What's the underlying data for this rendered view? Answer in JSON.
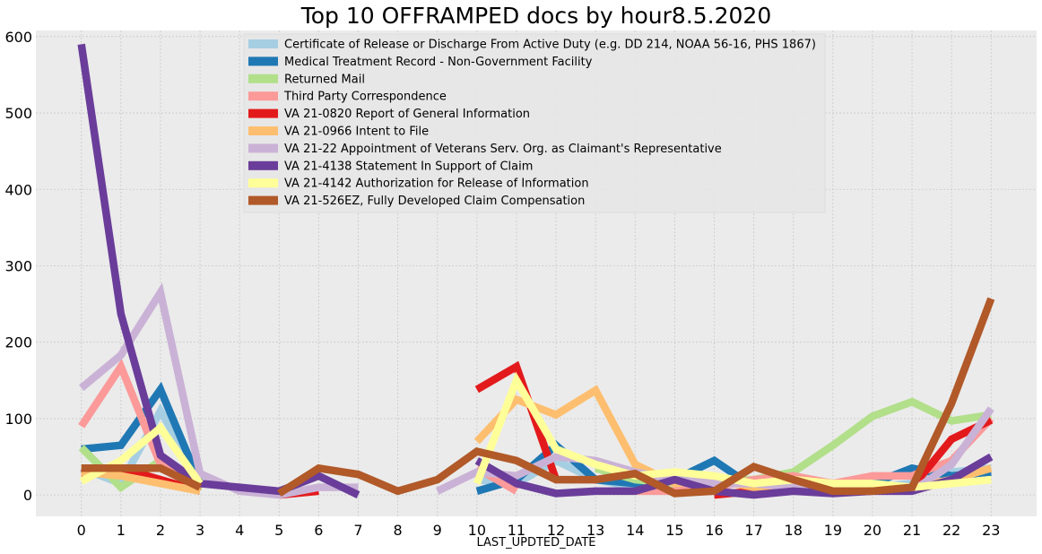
{
  "chart_data": {
    "type": "line",
    "title": "Top 10 OFFRAMPED docs by hour8.5.2020",
    "xlabel": "LAST_UPDTED_DATE",
    "ylabel": "",
    "xlim": [
      -1.15,
      24.15
    ],
    "ylim": [
      -28,
      608
    ],
    "x_ticks": [
      0,
      1,
      2,
      3,
      4,
      5,
      6,
      7,
      8,
      9,
      10,
      11,
      12,
      13,
      14,
      15,
      16,
      17,
      18,
      19,
      20,
      21,
      22,
      23
    ],
    "y_ticks": [
      0,
      100,
      200,
      300,
      400,
      500,
      600
    ],
    "grid": true,
    "legend_position": "top-center",
    "series": [
      {
        "name": "Certificate of Release or Discharge From Active Duty (e.g. DD 214, NOAA 56-16, PHS 1867)",
        "color": "#a6cee3",
        "points": [
          [
            0,
            35
          ],
          [
            1,
            15
          ],
          [
            2,
            110
          ],
          [
            3,
            20
          ],
          [
            null,
            null
          ],
          [
            10,
            20
          ],
          [
            11,
            15
          ],
          [
            12,
            45
          ],
          [
            13,
            20
          ],
          [
            14,
            10
          ],
          [
            15,
            10
          ],
          [
            16,
            10
          ],
          [
            17,
            20
          ],
          [
            18,
            15
          ],
          [
            19,
            10
          ],
          [
            20,
            10
          ],
          [
            21,
            15
          ],
          [
            22,
            30
          ],
          [
            23,
            35
          ]
        ]
      },
      {
        "name": "Medical Treatment Record - Non-Government Facility",
        "color": "#1f78b4",
        "points": [
          [
            0,
            60
          ],
          [
            1,
            65
          ],
          [
            2,
            138
          ],
          [
            3,
            15
          ],
          [
            null,
            null
          ],
          [
            10,
            5
          ],
          [
            11,
            20
          ],
          [
            12,
            65
          ],
          [
            13,
            20
          ],
          [
            14,
            15
          ],
          [
            15,
            20
          ],
          [
            16,
            45
          ],
          [
            17,
            10
          ],
          [
            18,
            10
          ],
          [
            19,
            5
          ],
          [
            20,
            15
          ],
          [
            21,
            35
          ],
          [
            22,
            25
          ],
          [
            23,
            30
          ]
        ]
      },
      {
        "name": "Returned Mail",
        "color": "#b2df8a",
        "points": [
          [
            0,
            62
          ],
          [
            1,
            10
          ],
          [
            2,
            45
          ],
          [
            3,
            5
          ],
          [
            null,
            null
          ],
          [
            13,
            35
          ],
          [
            14,
            20
          ],
          [
            15,
            15
          ],
          [
            16,
            20
          ],
          [
            17,
            20
          ],
          [
            18,
            30
          ],
          [
            19,
            65
          ],
          [
            20,
            103
          ],
          [
            21,
            122
          ],
          [
            22,
            97
          ],
          [
            23,
            105
          ]
        ]
      },
      {
        "name": "Third Party Correspondence",
        "color": "#fb9a99",
        "points": [
          [
            0,
            90
          ],
          [
            1,
            168
          ],
          [
            2,
            40
          ],
          [
            3,
            10
          ],
          [
            null,
            null
          ],
          [
            10,
            35
          ],
          [
            11,
            5
          ],
          [
            null,
            null
          ],
          [
            14,
            5
          ],
          [
            15,
            5
          ],
          [
            16,
            10
          ],
          [
            17,
            20
          ],
          [
            18,
            25
          ],
          [
            19,
            15
          ],
          [
            20,
            25
          ],
          [
            21,
            25
          ],
          [
            22,
            45
          ],
          [
            23,
            100
          ]
        ]
      },
      {
        "name": "VA 21-0820 Report of General Information",
        "color": "#e31a1c",
        "points": [
          [
            0,
            28
          ],
          [
            1,
            35
          ],
          [
            2,
            20
          ],
          [
            3,
            5
          ],
          [
            null,
            null
          ],
          [
            5,
            0
          ],
          [
            6,
            5
          ],
          [
            null,
            null
          ],
          [
            10,
            138
          ],
          [
            11,
            168
          ],
          [
            12,
            20
          ],
          [
            null,
            null
          ],
          [
            16,
            0
          ],
          [
            17,
            5
          ],
          [
            18,
            10
          ],
          [
            19,
            5
          ],
          [
            20,
            5
          ],
          [
            21,
            10
          ],
          [
            22,
            73
          ],
          [
            23,
            98
          ]
        ]
      },
      {
        "name": "VA 21-0966 Intent to File",
        "color": "#fdbf6f",
        "points": [
          [
            0,
            30
          ],
          [
            1,
            25
          ],
          [
            2,
            15
          ],
          [
            3,
            5
          ],
          [
            null,
            null
          ],
          [
            10,
            70
          ],
          [
            11,
            125
          ],
          [
            12,
            105
          ],
          [
            13,
            137
          ],
          [
            14,
            40
          ],
          [
            15,
            15
          ],
          [
            16,
            20
          ],
          [
            17,
            10
          ],
          [
            18,
            15
          ],
          [
            19,
            10
          ],
          [
            20,
            10
          ],
          [
            21,
            10
          ],
          [
            22,
            20
          ],
          [
            23,
            35
          ]
        ]
      },
      {
        "name": "VA 21-22 Appointment of Veterans Serv. Org. as Claimant's Representative",
        "color": "#cab2d6",
        "points": [
          [
            0,
            140
          ],
          [
            1,
            183
          ],
          [
            2,
            265
          ],
          [
            3,
            28
          ],
          [
            4,
            5
          ],
          [
            5,
            0
          ],
          [
            6,
            10
          ],
          [
            7,
            10
          ],
          [
            null,
            null
          ],
          [
            9,
            5
          ],
          [
            10,
            30
          ],
          [
            11,
            25
          ],
          [
            12,
            50
          ],
          [
            13,
            45
          ],
          [
            14,
            30
          ],
          [
            15,
            20
          ],
          [
            16,
            15
          ],
          [
            17,
            15
          ],
          [
            18,
            10
          ],
          [
            19,
            5
          ],
          [
            20,
            5
          ],
          [
            21,
            5
          ],
          [
            22,
            40
          ],
          [
            23,
            113
          ]
        ]
      },
      {
        "name": "VA 21-4138 Statement In Support of Claim",
        "color": "#6a3d9a",
        "points": [
          [
            0,
            590
          ],
          [
            1,
            237
          ],
          [
            2,
            52
          ],
          [
            3,
            15
          ],
          [
            4,
            10
          ],
          [
            5,
            5
          ],
          [
            6,
            25
          ],
          [
            7,
            0
          ],
          [
            null,
            null
          ],
          [
            10,
            45
          ],
          [
            11,
            15
          ],
          [
            12,
            2
          ],
          [
            13,
            5
          ],
          [
            14,
            5
          ],
          [
            15,
            20
          ],
          [
            16,
            5
          ],
          [
            17,
            0
          ],
          [
            18,
            5
          ],
          [
            19,
            2
          ],
          [
            20,
            5
          ],
          [
            21,
            5
          ],
          [
            22,
            20
          ],
          [
            23,
            50
          ]
        ]
      },
      {
        "name": "VA 21-4142 Authorization for Release of Information",
        "color": "#ffff99",
        "points": [
          [
            0,
            18
          ],
          [
            1,
            45
          ],
          [
            2,
            88
          ],
          [
            3,
            15
          ],
          [
            null,
            null
          ],
          [
            10,
            15
          ],
          [
            11,
            150
          ],
          [
            12,
            60
          ],
          [
            13,
            40
          ],
          [
            14,
            25
          ],
          [
            15,
            30
          ],
          [
            16,
            25
          ],
          [
            17,
            15
          ],
          [
            18,
            20
          ],
          [
            19,
            15
          ],
          [
            20,
            15
          ],
          [
            21,
            10
          ],
          [
            22,
            15
          ],
          [
            23,
            20
          ]
        ]
      },
      {
        "name": "VA 21-526EZ, Fully Developed Claim Compensation",
        "color": "#b15928",
        "points": [
          [
            0,
            35
          ],
          [
            1,
            35
          ],
          [
            2,
            35
          ],
          [
            3,
            10
          ],
          [
            null,
            null
          ],
          [
            5,
            2
          ],
          [
            6,
            35
          ],
          [
            7,
            27
          ],
          [
            8,
            5
          ],
          [
            9,
            20
          ],
          [
            10,
            57
          ],
          [
            11,
            45
          ],
          [
            12,
            20
          ],
          [
            13,
            20
          ],
          [
            14,
            28
          ],
          [
            15,
            2
          ],
          [
            16,
            5
          ],
          [
            17,
            37
          ],
          [
            18,
            20
          ],
          [
            19,
            5
          ],
          [
            20,
            5
          ],
          [
            21,
            10
          ],
          [
            22,
            120
          ],
          [
            23,
            257
          ]
        ]
      }
    ]
  }
}
